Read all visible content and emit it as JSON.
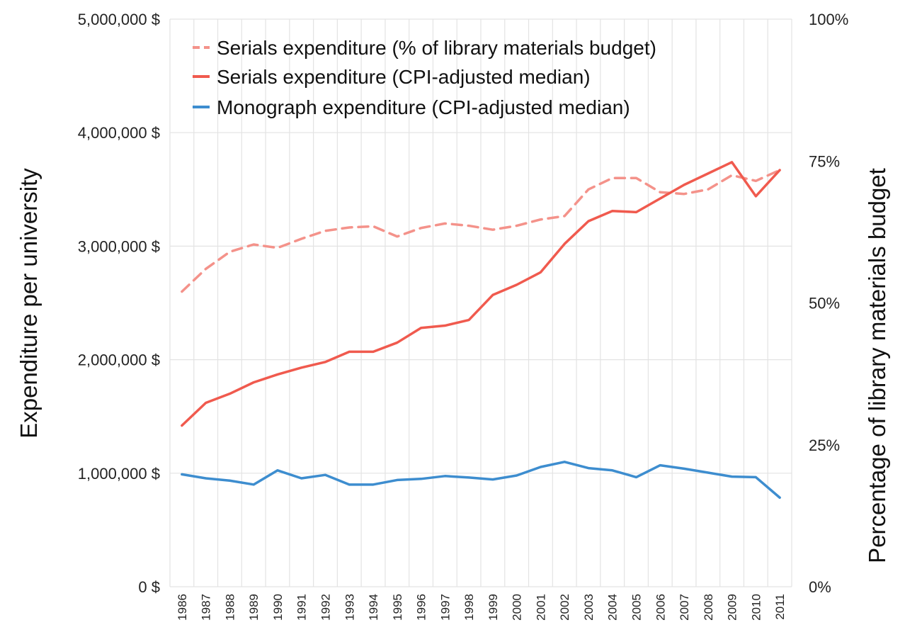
{
  "chart_data": {
    "type": "line",
    "categories": [
      "1986",
      "1987",
      "1988",
      "1989",
      "1990",
      "1991",
      "1992",
      "1993",
      "1994",
      "1995",
      "1996",
      "1997",
      "1998",
      "1999",
      "2000",
      "2001",
      "2002",
      "2003",
      "2004",
      "2005",
      "2006",
      "2007",
      "2008",
      "2009",
      "2010",
      "2011"
    ],
    "ylabel": "Expenditure per university",
    "y2label": "Percentage of library materials budget",
    "ylim": [
      0,
      5000000
    ],
    "y2lim": [
      0,
      100
    ],
    "yticks": [
      "0 $",
      "1,000,000 $",
      "2,000,000 $",
      "3,000,000 $",
      "4,000,000 $",
      "5,000,000 $"
    ],
    "y2ticks": [
      "0%",
      "25%",
      "50%",
      "75%",
      "100%"
    ],
    "grid": true,
    "legend_position": "top-left",
    "series": [
      {
        "name": "Serials expenditure (% of library materials budget)",
        "axis": "right",
        "style": "dashed",
        "color": "#f4928a",
        "values": [
          52.0,
          56.0,
          59.0,
          60.3,
          59.7,
          61.3,
          62.7,
          63.3,
          63.5,
          61.7,
          63.2,
          64.0,
          63.6,
          62.9,
          63.6,
          64.7,
          65.3,
          70.0,
          72.0,
          72.0,
          69.5,
          69.2,
          70.0,
          72.5,
          71.5,
          73.4
        ]
      },
      {
        "name": "Serials expenditure (CPI-adjusted median)",
        "axis": "left",
        "style": "solid",
        "color": "#f05a4e",
        "values": [
          1420000,
          1620000,
          1700000,
          1800000,
          1870000,
          1930000,
          1980000,
          2070000,
          2070000,
          2150000,
          2280000,
          2300000,
          2350000,
          2570000,
          2660000,
          2770000,
          3020000,
          3220000,
          3310000,
          3300000,
          3420000,
          3540000,
          3640000,
          3740000,
          3440000,
          3670000
        ]
      },
      {
        "name": "Monograph expenditure (CPI-adjusted median)",
        "axis": "left",
        "style": "solid",
        "color": "#3d8dcf",
        "values": [
          990000,
          955000,
          935000,
          900000,
          1025000,
          955000,
          985000,
          900000,
          900000,
          940000,
          950000,
          975000,
          962000,
          945000,
          980000,
          1055000,
          1100000,
          1045000,
          1025000,
          965000,
          1070000,
          1040000,
          1005000,
          970000,
          965000,
          785000
        ]
      }
    ]
  }
}
